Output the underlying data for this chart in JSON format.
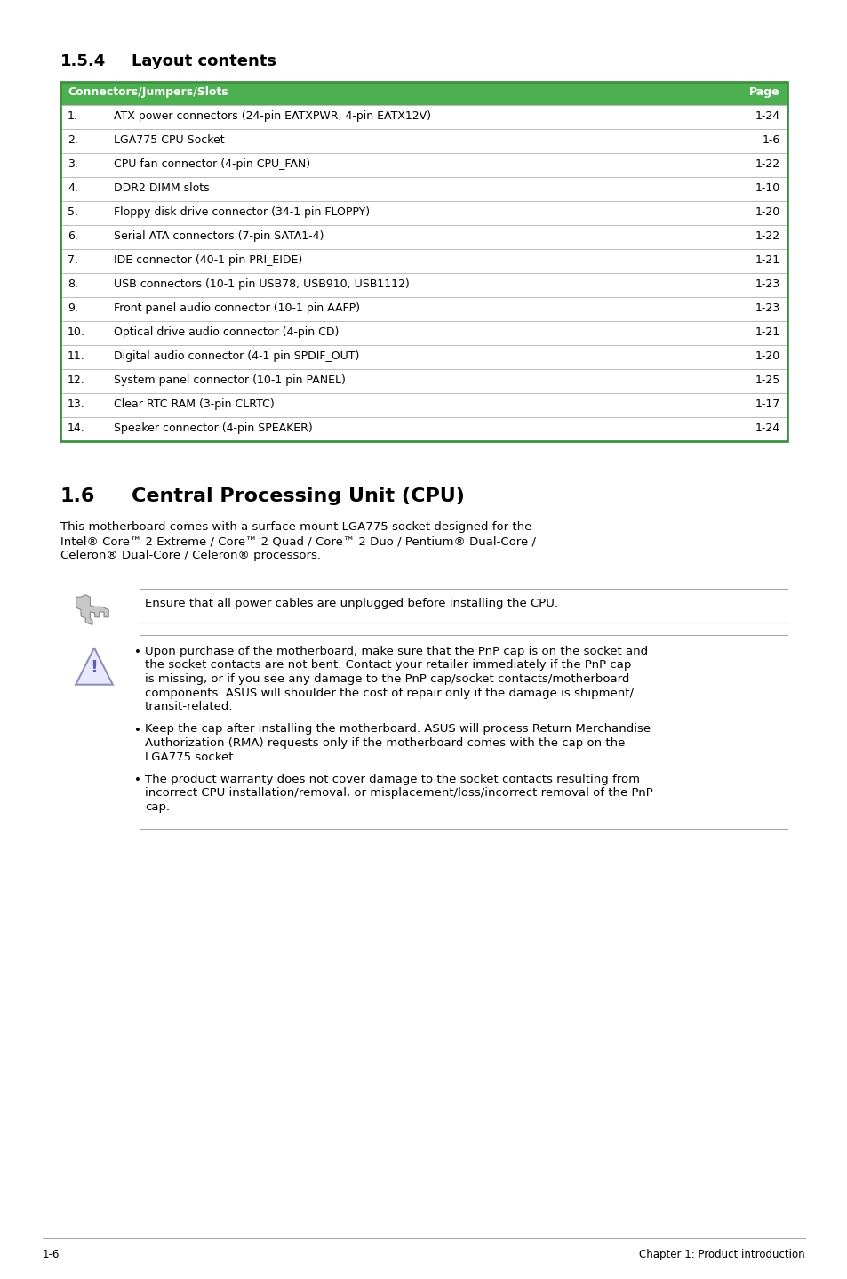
{
  "page_bg": "#ffffff",
  "table_header_bg": "#4caf50",
  "table_header_text_color": "#ffffff",
  "table_border_color": "#3d9140",
  "table_row_divider_color": "#bbbbbb",
  "table_col1_header": "Connectors/Jumpers/Slots",
  "table_col2_header": "Page",
  "table_rows": [
    [
      "1.",
      "ATX power connectors (24-pin EATXPWR, 4-pin EATX12V)",
      "1-24"
    ],
    [
      "2.",
      "LGA775 CPU Socket",
      "1-6"
    ],
    [
      "3.",
      "CPU fan connector (4-pin CPU_FAN)",
      "1-22"
    ],
    [
      "4.",
      "DDR2 DIMM slots",
      "1-10"
    ],
    [
      "5.",
      "Floppy disk drive connector (34-1 pin FLOPPY)",
      "1-20"
    ],
    [
      "6.",
      "Serial ATA connectors (7-pin SATA1-4)",
      "1-22"
    ],
    [
      "7.",
      "IDE connector (40-1 pin PRI_EIDE)",
      "1-21"
    ],
    [
      "8.",
      "USB connectors (10-1 pin USB78, USB910, USB1112)",
      "1-23"
    ],
    [
      "9.",
      "Front panel audio connector (10-1 pin AAFP)",
      "1-23"
    ],
    [
      "10.",
      "Optical drive audio connector (4-pin CD)",
      "1-21"
    ],
    [
      "11.",
      "Digital audio connector (4-1 pin SPDIF_OUT)",
      "1-20"
    ],
    [
      "12.",
      "System panel connector (10-1 pin PANEL)",
      "1-25"
    ],
    [
      "13.",
      "Clear RTC RAM (3-pin CLRTC)",
      "1-17"
    ],
    [
      "14.",
      "Speaker connector (4-pin SPEAKER)",
      "1-24"
    ]
  ],
  "cpu_intro_lines": [
    "This motherboard comes with a surface mount LGA775 socket designed for the",
    "Intel® Core™ 2 Extreme / Core™ 2 Quad / Core™ 2 Duo / Pentium® Dual-Core /",
    "Celeron® Dual-Core / Celeron® processors."
  ],
  "note_text": "Ensure that all power cables are unplugged before installing the CPU.",
  "warning_bullets": [
    [
      "Upon purchase of the motherboard, make sure that the PnP cap is on the socket and",
      "the socket contacts are not bent. Contact your retailer immediately if the PnP cap",
      "is missing, or if you see any damage to the PnP cap/socket contacts/motherboard",
      "components. ASUS will shoulder the cost of repair only if the damage is shipment/",
      "transit-related."
    ],
    [
      "Keep the cap after installing the motherboard. ASUS will process Return Merchandise",
      "Authorization (RMA) requests only if the motherboard comes with the cap on the",
      "LGA775 socket."
    ],
    [
      "The product warranty does not cover damage to the socket contacts resulting from",
      "incorrect CPU installation/removal, or misplacement/loss/incorrect removal of the PnP",
      "cap."
    ]
  ],
  "footer_left": "1-6",
  "footer_right": "Chapter 1: Product introduction"
}
